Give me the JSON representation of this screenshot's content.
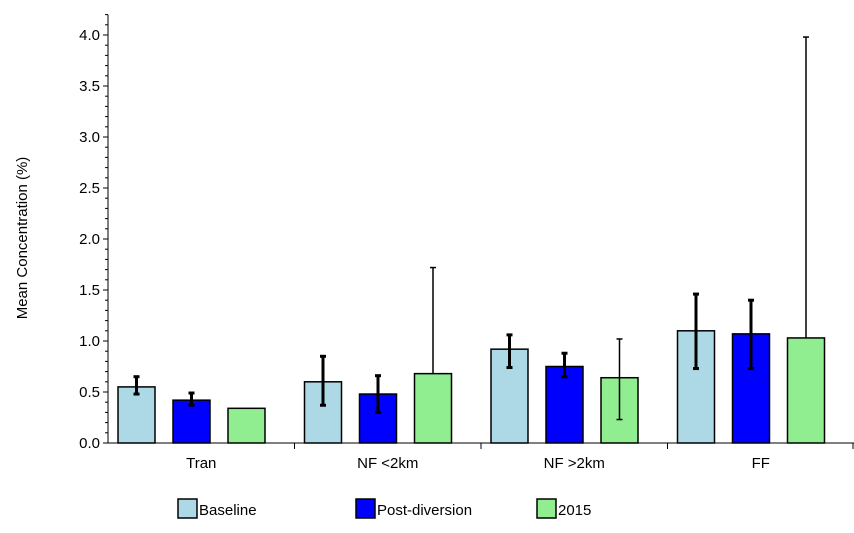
{
  "chart_data": {
    "type": "bar",
    "categories": [
      "Tran",
      "NF <2km",
      "NF >2km",
      "FF"
    ],
    "series": [
      {
        "name": "Baseline",
        "color": "#add8e6",
        "values": [
          0.55,
          0.6,
          0.92,
          1.1
        ],
        "err_low": [
          0.48,
          0.37,
          0.74,
          0.73
        ],
        "err_high": [
          0.65,
          0.85,
          1.06,
          1.46
        ]
      },
      {
        "name": "Post-diversion",
        "color": "#0000ff",
        "values": [
          0.42,
          0.48,
          0.75,
          1.07
        ],
        "err_low": [
          0.37,
          0.3,
          0.65,
          0.73
        ],
        "err_high": [
          0.49,
          0.66,
          0.88,
          1.4
        ]
      },
      {
        "name": "2015",
        "color": "#90ee90",
        "values": [
          0.34,
          0.68,
          0.64,
          1.03
        ],
        "err_low": [
          null,
          null,
          0.23,
          null
        ],
        "err_high": [
          null,
          1.72,
          1.02,
          3.98
        ]
      }
    ],
    "title": "",
    "xlabel": "",
    "ylabel": "Mean Concentration (%)",
    "ylim": [
      0.0,
      4.2
    ],
    "yticks": [
      "0.0",
      "0.5",
      "1.0",
      "1.5",
      "2.0",
      "2.5",
      "3.0",
      "3.5",
      "4.0"
    ],
    "grid": false,
    "legend_position": "bottom"
  }
}
